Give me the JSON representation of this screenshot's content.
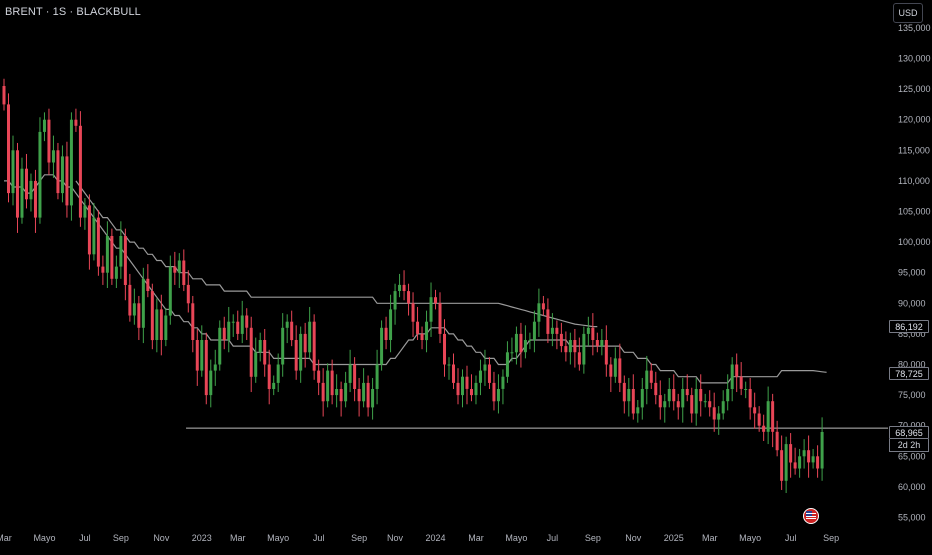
{
  "symbol_title": "BRENT · 1S · BLACKBULL",
  "currency": "USD",
  "colors": {
    "up": "#26a69a",
    "up_candle": "#3fa14a",
    "down": "#e84657",
    "ma_fast": "#9a9a9a",
    "ma_slow": "#9a9a9a",
    "support": "#bcbcbc",
    "axis_text": "#b2b5be"
  },
  "price_axis": {
    "labels": [
      "135,000",
      "130,000",
      "125,000",
      "120,000",
      "115,000",
      "110,000",
      "105,000",
      "100,000",
      "95,000",
      "90,000",
      "85,000",
      "80,000",
      "75,000",
      "70,000",
      "65,000",
      "60,000",
      "55,000"
    ],
    "values": [
      135,
      130,
      125,
      120,
      115,
      110,
      105,
      100,
      95,
      90,
      85,
      80,
      75,
      70,
      65,
      60,
      55
    ]
  },
  "time_axis": {
    "labels": [
      {
        "text": "Mar",
        "t": 0
      },
      {
        "text": "Mayo",
        "t": 9
      },
      {
        "text": "Jul",
        "t": 18
      },
      {
        "text": "Sep",
        "t": 26
      },
      {
        "text": "Nov",
        "t": 35
      },
      {
        "text": "2023",
        "t": 44
      },
      {
        "text": "Mar",
        "t": 52
      },
      {
        "text": "Mayo",
        "t": 61
      },
      {
        "text": "Jul",
        "t": 70
      },
      {
        "text": "Sep",
        "t": 79
      },
      {
        "text": "Nov",
        "t": 87
      },
      {
        "text": "2024",
        "t": 96
      },
      {
        "text": "Mar",
        "t": 105
      },
      {
        "text": "Mayo",
        "t": 114
      },
      {
        "text": "Jul",
        "t": 122
      },
      {
        "text": "Sep",
        "t": 131
      },
      {
        "text": "Nov",
        "t": 140
      },
      {
        "text": "2025",
        "t": 149
      },
      {
        "text": "Mar",
        "t": 157
      },
      {
        "text": "Mayo",
        "t": 166
      },
      {
        "text": "Jul",
        "t": 175
      },
      {
        "text": "Sep",
        "t": 184
      }
    ]
  },
  "price_tags": {
    "ma_slow": "86,192",
    "ma_fast": "78,725",
    "last": "68,965",
    "countdown": "2d 2h"
  },
  "chart_data": {
    "type": "candlestick",
    "interval": "1W",
    "ylim": [
      53,
      137
    ],
    "support_level": 69.6,
    "closes": [
      122.5,
      108,
      115,
      104,
      112,
      107,
      110,
      104,
      118,
      120,
      113,
      115,
      108,
      114,
      106,
      120,
      119,
      104,
      106,
      98,
      104,
      96,
      95,
      101,
      94,
      96,
      101,
      93,
      88,
      90,
      86,
      94,
      92,
      84,
      89,
      84,
      88,
      96,
      95,
      97,
      93,
      90,
      84,
      79,
      84,
      75,
      79,
      80,
      86,
      84,
      87,
      87,
      85,
      88,
      86,
      78,
      82,
      84,
      80,
      76,
      77,
      80,
      86,
      87,
      84,
      79,
      85,
      82,
      87,
      79,
      77,
      74,
      79,
      75,
      76,
      74,
      77,
      80,
      76,
      74,
      77,
      73,
      76,
      80,
      86,
      84,
      89,
      92,
      93,
      92,
      90,
      87,
      85,
      84,
      87,
      91,
      90,
      85,
      80,
      80,
      77,
      75,
      78,
      76,
      75,
      77,
      79,
      80,
      77,
      74,
      76,
      78,
      82,
      82,
      85,
      82,
      84,
      84,
      87,
      90,
      89,
      85,
      86,
      85,
      83,
      82,
      84,
      82,
      80,
      85,
      86,
      84,
      83,
      84,
      80,
      78,
      81,
      77,
      74,
      76,
      72,
      73,
      76,
      79,
      77,
      75,
      73,
      74,
      76,
      74,
      73,
      76,
      75,
      72,
      76,
      74,
      74,
      73,
      71,
      72,
      74,
      76,
      80,
      78,
      76,
      76,
      73,
      72,
      70,
      69,
      74,
      69,
      66,
      61,
      67,
      64,
      63,
      65,
      66,
      64,
      65,
      63,
      68.965
    ],
    "ma_fast": [
      110,
      110,
      109,
      109,
      109,
      108,
      108,
      109,
      110,
      111,
      111,
      111,
      110,
      110,
      109,
      109,
      108,
      107,
      106,
      105,
      104,
      103,
      102,
      101,
      100,
      99,
      99,
      98,
      97,
      96,
      95,
      94,
      93,
      92,
      91,
      90,
      89,
      89,
      88,
      88,
      87,
      87,
      86,
      86,
      85,
      85,
      84,
      84,
      84,
      84,
      84,
      83,
      83,
      83,
      83,
      83,
      82,
      82,
      82,
      82,
      81,
      81,
      81,
      81,
      81,
      81,
      81,
      81,
      81,
      80,
      80,
      80,
      80,
      80,
      80,
      80,
      80,
      80,
      80,
      80,
      80,
      80,
      80,
      80,
      80,
      80,
      81,
      81,
      82,
      83,
      84,
      84,
      85,
      85,
      85,
      86,
      86,
      86,
      86,
      85,
      85,
      84,
      84,
      83,
      83,
      82,
      82,
      81,
      81,
      81,
      80,
      80,
      80,
      81,
      81,
      82,
      83,
      84,
      84,
      84,
      84,
      84,
      84,
      84,
      84,
      84,
      83,
      83,
      83,
      83,
      83,
      83,
      83,
      83,
      83,
      83,
      83,
      83,
      82,
      82,
      82,
      81,
      81,
      81,
      80,
      80,
      79,
      79,
      79,
      79,
      78,
      78,
      78,
      78,
      78,
      77,
      77,
      77,
      77,
      77,
      77,
      77,
      78,
      78,
      78,
      78,
      78,
      78,
      78,
      78,
      78,
      78,
      78,
      79,
      79,
      79,
      79,
      79,
      79,
      79,
      79,
      78.9,
      78.8,
      78.725
    ],
    "ma_slow": [
      null,
      null,
      null,
      null,
      null,
      null,
      null,
      null,
      null,
      null,
      null,
      null,
      null,
      null,
      null,
      null,
      110,
      109,
      108,
      107,
      106,
      105,
      104,
      104,
      103,
      102,
      102,
      101,
      100,
      100,
      99,
      99,
      98,
      98,
      97,
      97,
      96,
      96,
      96,
      95,
      95,
      95,
      94,
      94,
      94,
      93,
      93,
      93,
      93,
      92,
      92,
      92,
      92,
      92,
      92,
      91,
      91,
      91,
      91,
      91,
      91,
      91,
      91,
      91,
      91,
      91,
      91,
      91,
      91,
      91,
      91,
      91,
      91,
      91,
      91,
      91,
      91,
      91,
      91,
      91,
      91,
      91,
      91,
      90,
      90,
      90,
      90,
      90,
      90,
      90,
      90,
      90,
      90,
      90,
      90,
      90,
      90,
      90,
      90,
      90,
      90,
      90,
      90,
      90,
      90,
      90,
      90,
      90,
      90,
      90,
      90,
      89.8,
      89.6,
      89.4,
      89.2,
      89,
      88.8,
      88.6,
      88.4,
      88.2,
      88,
      87.8,
      87.6,
      87.4,
      87.2,
      87,
      86.8,
      86.6,
      86.5,
      86.4,
      86.3,
      86.2,
      86.192
    ]
  }
}
